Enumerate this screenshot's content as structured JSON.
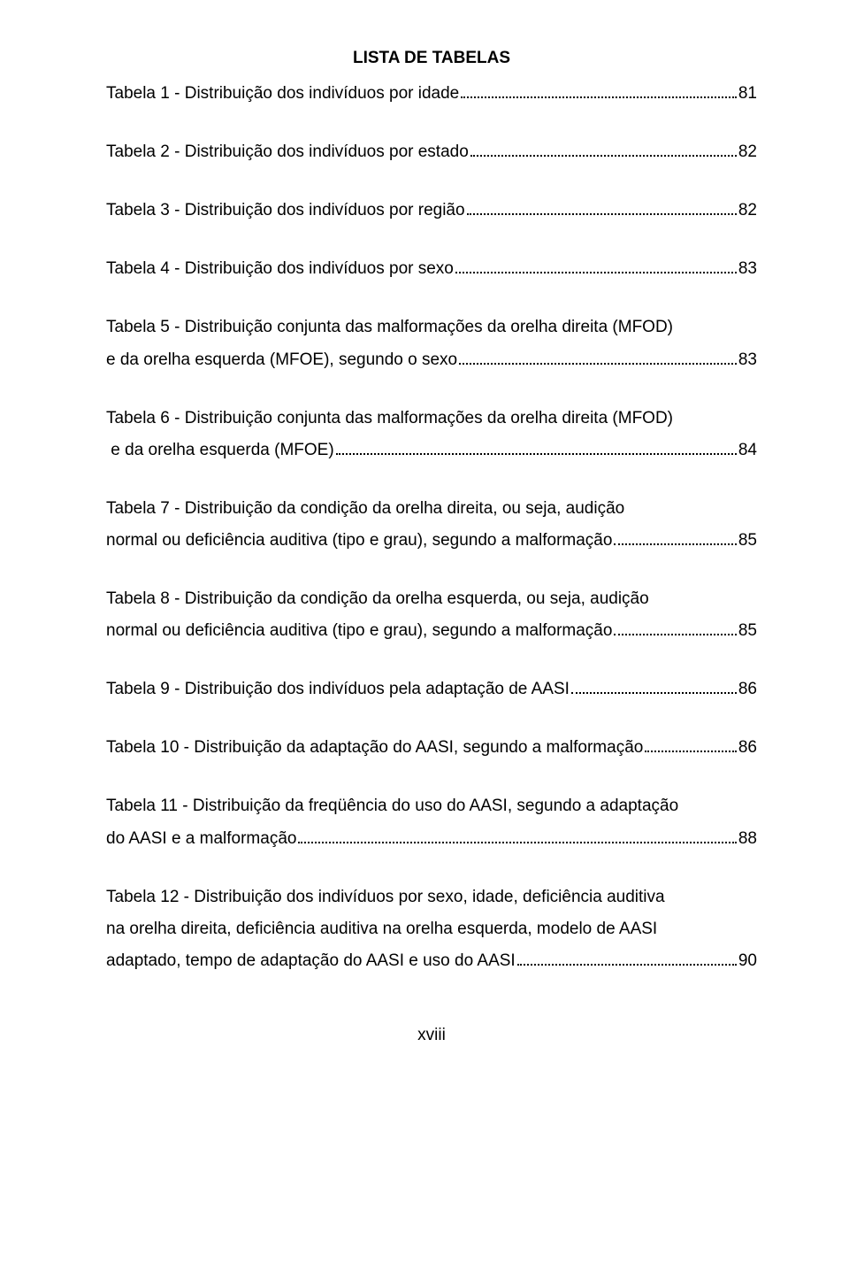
{
  "title": "LISTA DE TABELAS",
  "footer": "xviii",
  "entries": [
    {
      "lines": [
        "Tabela 1 - Distribuição dos indivíduos por idade"
      ],
      "page": "81"
    },
    {
      "lines": [
        "Tabela 2 - Distribuição dos indivíduos por estado"
      ],
      "page": "82"
    },
    {
      "lines": [
        "Tabela 3 - Distribuição dos indivíduos por região"
      ],
      "page": "82"
    },
    {
      "lines": [
        "Tabela 4 - Distribuição dos indivíduos por sexo"
      ],
      "page": "83"
    },
    {
      "lines": [
        "Tabela 5 - Distribuição conjunta das malformações da orelha direita (MFOD)",
        "e da orelha esquerda (MFOE), segundo o sexo"
      ],
      "page": "83"
    },
    {
      "lines": [
        "Tabela 6 - Distribuição conjunta das malformações da orelha direita (MFOD)",
        " e da orelha esquerda (MFOE)"
      ],
      "page": "84"
    },
    {
      "lines": [
        "Tabela 7 - Distribuição da condição da orelha direita, ou seja, audição",
        "normal ou deficiência auditiva (tipo e grau), segundo a malformação"
      ],
      "page": "85"
    },
    {
      "lines": [
        "Tabela 8 - Distribuição da condição da orelha esquerda, ou seja, audição",
        "normal ou deficiência auditiva (tipo e grau), segundo a malformação"
      ],
      "page": "85"
    },
    {
      "lines": [
        "Tabela 9 - Distribuição dos indivíduos pela adaptação de AASI"
      ],
      "page": "86"
    },
    {
      "lines": [
        "Tabela 10 - Distribuição da adaptação do AASI, segundo a malformação"
      ],
      "page": "86"
    },
    {
      "lines": [
        "Tabela 11 - Distribuição da freqüência do uso do AASI, segundo a adaptação",
        "do AASI e a malformação"
      ],
      "page": "88"
    },
    {
      "lines": [
        "Tabela 12 - Distribuição dos indivíduos por sexo, idade, deficiência auditiva",
        "na orelha direita, deficiência auditiva na orelha esquerda, modelo de AASI",
        "adaptado, tempo de adaptação do AASI e uso do AASI"
      ],
      "page": "90"
    }
  ]
}
